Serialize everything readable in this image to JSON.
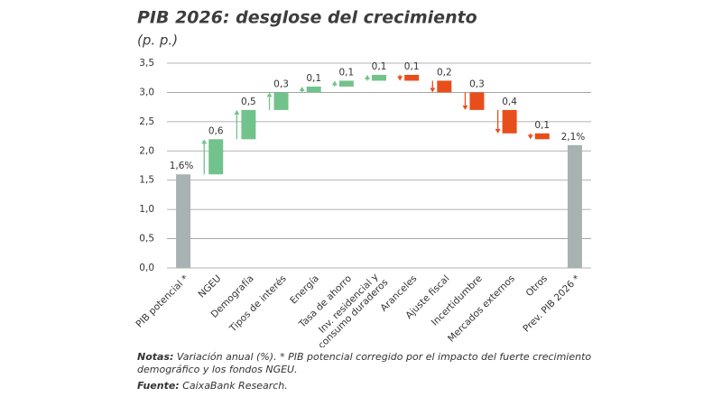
{
  "chart_data": {
    "type": "waterfall",
    "title": "PIB 2026: desglose del crecimiento",
    "subtitle": "(p. p.)",
    "categories": [
      "PIB potencial *",
      "NGEU",
      "Demografía",
      "Tipos de interés",
      "Energía",
      "Tasa de ahorro",
      "Inv. residencial y consumo duraderos",
      "Aranceles",
      "Ajuste fiscal",
      "Incertidumbre",
      "Mercados externos",
      "Otros",
      "Prev. PIB 2026 *"
    ],
    "values": [
      1.6,
      0.6,
      0.5,
      0.3,
      0.1,
      0.1,
      0.1,
      -0.1,
      -0.2,
      -0.3,
      -0.4,
      -0.1,
      2.1
    ],
    "value_labels": [
      "1,6%",
      "0,6",
      "0,5",
      "0,3",
      "0,1",
      "0,1",
      "0,1",
      "0,1",
      "0,2",
      "0,3",
      "0,4",
      "0,1",
      "2,1%"
    ],
    "totals": [
      0,
      12
    ],
    "colors": {
      "increase": "#72c28c",
      "decrease": "#e84e1b",
      "total": "#a9b2b2"
    },
    "ylim": [
      0,
      3.5
    ],
    "yticks": [
      {
        "value": 0,
        "label": "0,0"
      },
      {
        "value": 0.5,
        "label": "0,5"
      },
      {
        "value": 1,
        "label": "1,0"
      },
      {
        "value": 1.5,
        "label": "1,5"
      },
      {
        "value": 2,
        "label": "2,0"
      },
      {
        "value": 2.5,
        "label": "2,5"
      },
      {
        "value": 3,
        "label": "3,0"
      },
      {
        "value": 3.5,
        "label": "3,5"
      }
    ],
    "grid": true
  },
  "notes": {
    "label": "Notas:",
    "text": "Variación anual (%). * PIB potencial corregido por el impacto del fuerte crecimiento demográfico y los fondos NGEU."
  },
  "source": {
    "label": "Fuente:",
    "text": "CaixaBank Research."
  }
}
